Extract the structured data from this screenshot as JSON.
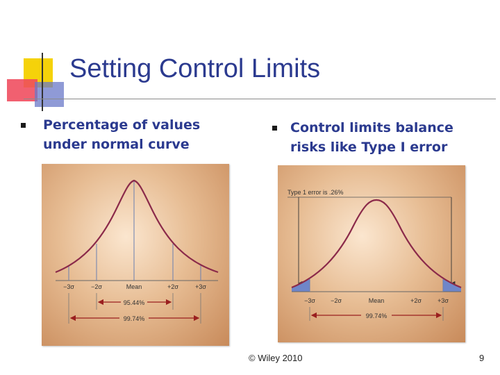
{
  "slide": {
    "title": "Setting Control Limits",
    "bullets": [
      {
        "line1": "Percentage of values",
        "line2": "under normal curve"
      },
      {
        "line1": "Control limits balance",
        "line2": "risks like Type I error"
      }
    ]
  },
  "figure_left": {
    "ticks": [
      "−3σ",
      "−2σ",
      "Mean",
      "+2σ",
      "+3σ"
    ],
    "range_inner": "95.44%",
    "range_outer": "99.74%"
  },
  "figure_right": {
    "note": "Type 1 error is .26%",
    "ticks": [
      "−3σ",
      "−2σ",
      "Mean",
      "+2σ",
      "+3σ"
    ],
    "range": "99.74%"
  },
  "footer": {
    "copyright": "© Wiley 2010",
    "page": "9"
  },
  "colors": {
    "title": "#2b3a8f",
    "curve": "#8b2a4a",
    "arrow": "#9a1f1f",
    "tail_fill": "#6f86c9"
  }
}
